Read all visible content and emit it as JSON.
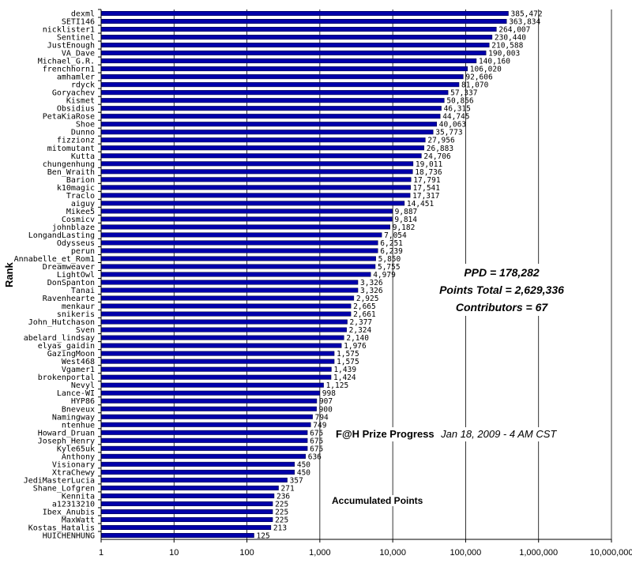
{
  "chart_data": {
    "type": "bar",
    "orientation": "horizontal",
    "x_scale": "log",
    "xlim": [
      1,
      10000000
    ],
    "x_ticks": [
      "1",
      "10",
      "100",
      "1,000",
      "10,000",
      "100,000",
      "1,000,000",
      "10,000,000"
    ],
    "ylabel": "Rank",
    "grid": true,
    "bar_color": "#0000aa",
    "categories": [
      "dexml",
      "SETI146",
      "nicklister1",
      "Sentinel",
      "JustEnough",
      "VA_Dave",
      "Michael_G.R.",
      "frenchhorn1",
      "amhamler",
      "rdyck",
      "Goryachev",
      "Kismet",
      "Obsidius",
      "PetaKiaRose",
      "Shoe",
      "Dunno",
      "fizzionz",
      "mitomutant",
      "Kutta",
      "chungenhung",
      "Ben_Wraith",
      "Barion",
      "k10magic",
      "Traclo",
      "aiguy",
      "Mikee5",
      "Cosmicv",
      "johnblaze",
      "LongandLasting",
      "Odysseus",
      "perun",
      "Annabelle_et_Rom1",
      "Dreamweaver",
      "LightOwl",
      "DonSpanton",
      "Tanai",
      "Ravenhearte",
      "menkaur",
      "snikeris",
      "John_Hutchason",
      "Sven",
      "abelard_lindsay",
      "elyas_gaidin",
      "GazingMoon",
      "West468",
      "Vgamer1",
      "brokenportal",
      "Nevyl",
      "Lance-WI",
      "HYP86",
      "Bneveux",
      "Namingway",
      "ntenhue",
      "Howard_Druan",
      "Joseph_Henry",
      "Kyle65uk",
      "Anthony",
      "Visionary",
      "XtraChewy",
      "JediMasterLucia",
      "Shane_Lofgren",
      "Kennita",
      "a12313210",
      "Ibex_Anubis",
      "MaxWatt",
      "Kostas_Hatalis",
      "HUICHENHUNG"
    ],
    "values": [
      385472,
      363834,
      264007,
      230440,
      210588,
      190003,
      140160,
      106020,
      92606,
      81070,
      57337,
      50856,
      46315,
      44745,
      40063,
      35773,
      27956,
      26883,
      24706,
      19011,
      18736,
      17791,
      17541,
      17317,
      14451,
      9887,
      9814,
      9182,
      7054,
      6251,
      6239,
      5850,
      5755,
      4979,
      3326,
      3326,
      2925,
      2665,
      2661,
      2377,
      2324,
      2140,
      1976,
      1575,
      1575,
      1439,
      1424,
      1125,
      998,
      907,
      900,
      794,
      749,
      675,
      675,
      675,
      636,
      450,
      450,
      357,
      271,
      236,
      225,
      225,
      225,
      213,
      125
    ],
    "value_labels": [
      "385,472",
      "363,834",
      "264,007",
      "230,440",
      "210,588",
      "190,003",
      "140,160",
      "106,020",
      "92,606",
      "81,070",
      "57,337",
      "50,856",
      "46,315",
      "44,745",
      "40,063",
      "35,773",
      "27,956",
      "26,883",
      "24,706",
      "19,011",
      "18,736",
      "17,791",
      "17,541",
      "17,317",
      "14,451",
      "9,887",
      "9,814",
      "9,182",
      "7,054",
      "6,251",
      "6,239",
      "5,850",
      "5,755",
      "4,979",
      "3,326",
      "3,326",
      "2,925",
      "2,665",
      "2,661",
      "2,377",
      "2,324",
      "2,140",
      "1,976",
      "1,575",
      "1,575",
      "1,439",
      "1,424",
      "1,125",
      "998",
      "907",
      "900",
      "794",
      "749",
      "675",
      "675",
      "675",
      "636",
      "450",
      "450",
      "357",
      "271",
      "236",
      "225",
      "225",
      "225",
      "213",
      "125"
    ],
    "annotations": {
      "ppd": "PPD = 178,282",
      "points_total": "Points Total = 2,629,336",
      "contributors": "Contributors = 67",
      "title": "F@H Prize Progress",
      "date": "Jan 18, 2009 - 4 AM CST",
      "subtitle": "Accumulated Points"
    }
  }
}
